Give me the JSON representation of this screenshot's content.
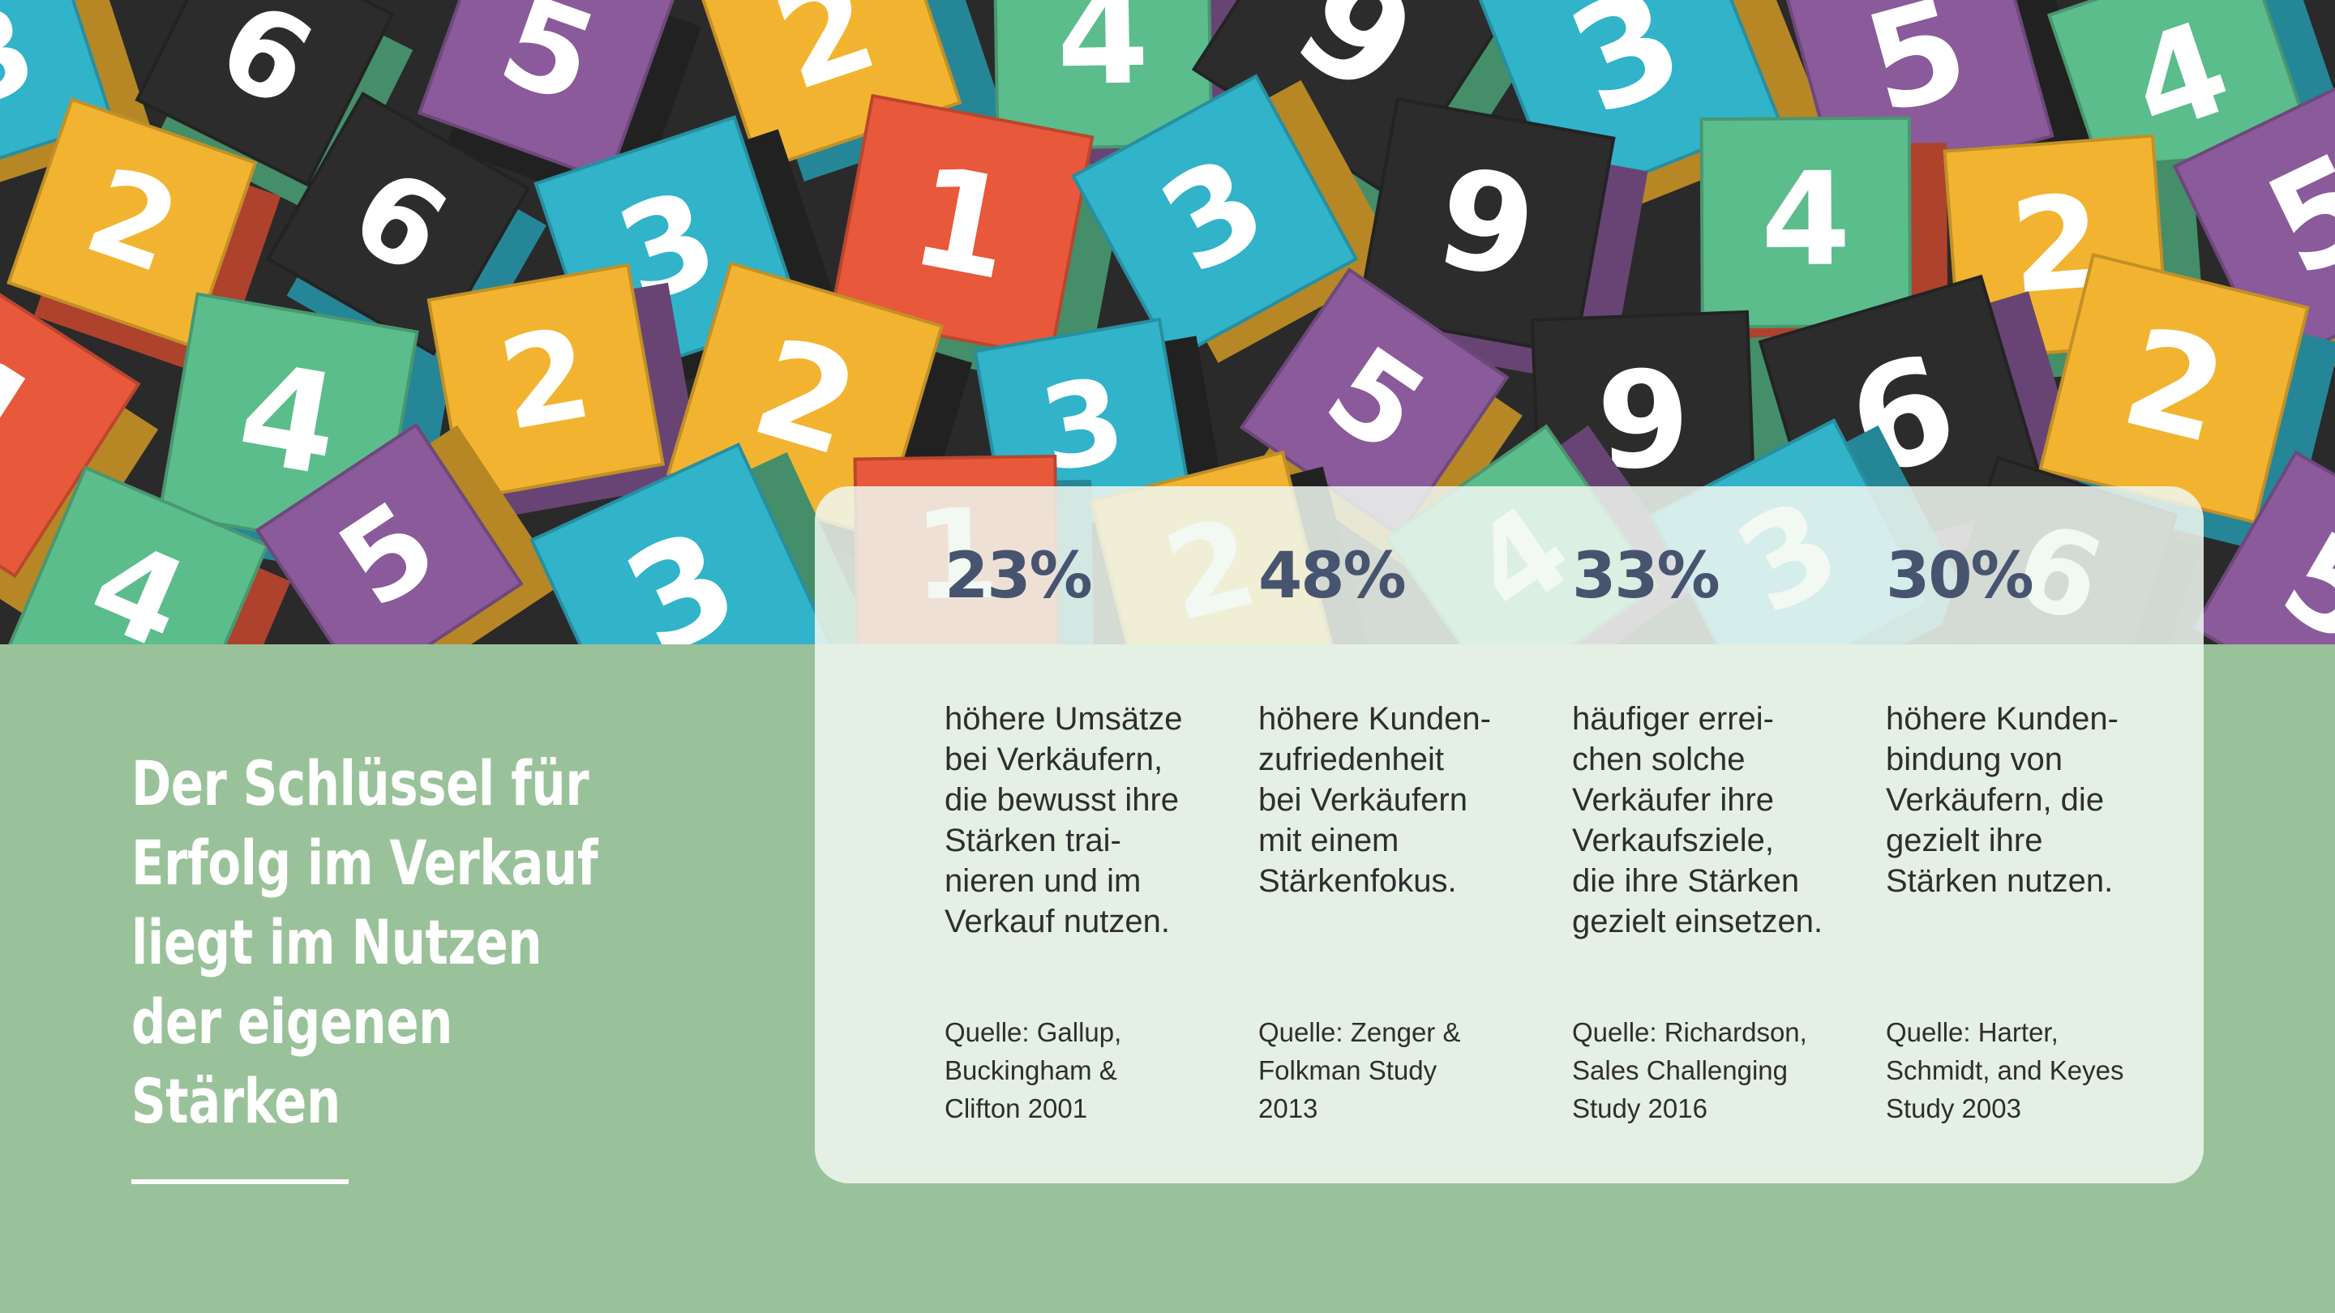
{
  "headline": "Der Schlüssel für Erfolg im Verkauf liegt im Nutzen der eigenen Stärken",
  "hero": {
    "cubes": [
      {
        "n": "3",
        "c": "#31b3c9"
      },
      {
        "n": "6",
        "c": "#2c2c2c"
      },
      {
        "n": "5",
        "c": "#8a5a9a"
      },
      {
        "n": "2",
        "c": "#f2b430"
      },
      {
        "n": "4",
        "c": "#5bbd8c"
      },
      {
        "n": "9",
        "c": "#2c2c2c"
      },
      {
        "n": "3",
        "c": "#31b3c9"
      },
      {
        "n": "5",
        "c": "#8a5a9a"
      },
      {
        "n": "4",
        "c": "#5bbd8c"
      },
      {
        "n": "2",
        "c": "#f2b430"
      },
      {
        "n": "6",
        "c": "#2c2c2c"
      },
      {
        "n": "3",
        "c": "#31b3c9"
      },
      {
        "n": "1",
        "c": "#e8583a"
      },
      {
        "n": "3",
        "c": "#31b3c9"
      },
      {
        "n": "9",
        "c": "#2c2c2c"
      },
      {
        "n": "4",
        "c": "#5bbd8c"
      },
      {
        "n": "2",
        "c": "#f2b430"
      },
      {
        "n": "5",
        "c": "#8a5a9a"
      },
      {
        "n": "1",
        "c": "#e8583a"
      },
      {
        "n": "4",
        "c": "#5bbd8c"
      },
      {
        "n": "2",
        "c": "#f2b430"
      },
      {
        "n": "2",
        "c": "#f2b430"
      },
      {
        "n": "3",
        "c": "#31b3c9"
      },
      {
        "n": "5",
        "c": "#8a5a9a"
      },
      {
        "n": "9",
        "c": "#2c2c2c"
      },
      {
        "n": "6",
        "c": "#2c2c2c"
      },
      {
        "n": "2",
        "c": "#f2b430"
      },
      {
        "n": "4",
        "c": "#5bbd8c"
      },
      {
        "n": "5",
        "c": "#8a5a9a"
      },
      {
        "n": "3",
        "c": "#31b3c9"
      },
      {
        "n": "1",
        "c": "#e8583a"
      },
      {
        "n": "2",
        "c": "#f2b430"
      },
      {
        "n": "4",
        "c": "#5bbd8c"
      },
      {
        "n": "3",
        "c": "#31b3c9"
      },
      {
        "n": "6",
        "c": "#2c2c2c"
      },
      {
        "n": "5",
        "c": "#8a5a9a"
      }
    ]
  },
  "stats": [
    {
      "value": "23%",
      "text": "höhere Umsätze\nbei Verkäufern,\ndie bewusst ihre\nStärken trai-\nnieren und im\nVerkauf nutzen.",
      "source": "Quelle: Gallup,\nBuckingham &\nClifton 2001"
    },
    {
      "value": "48%",
      "text": "höhere Kunden-\nzufriedenheit\nbei Verkäufern\nmit einem\nStärkenfokus.",
      "source": "Quelle: Zenger &\nFolkman Study\n2013"
    },
    {
      "value": "33%",
      "text": "häufiger errei-\nchen solche\nVerkäufer ihre\nVerkaufsziele,\ndie ihre Stärken\ngezielt einsetzen.",
      "source": "Quelle: Richardson,\nSales Challenging\nStudy 2016"
    },
    {
      "value": "30%",
      "text": "höhere Kunden-\nbindung von\nVerkäufern, die\ngezielt ihre\nStärken nutzen.",
      "source": "Quelle: Harter,\nSchmidt, and Keyes\nStudy 2003"
    }
  ]
}
